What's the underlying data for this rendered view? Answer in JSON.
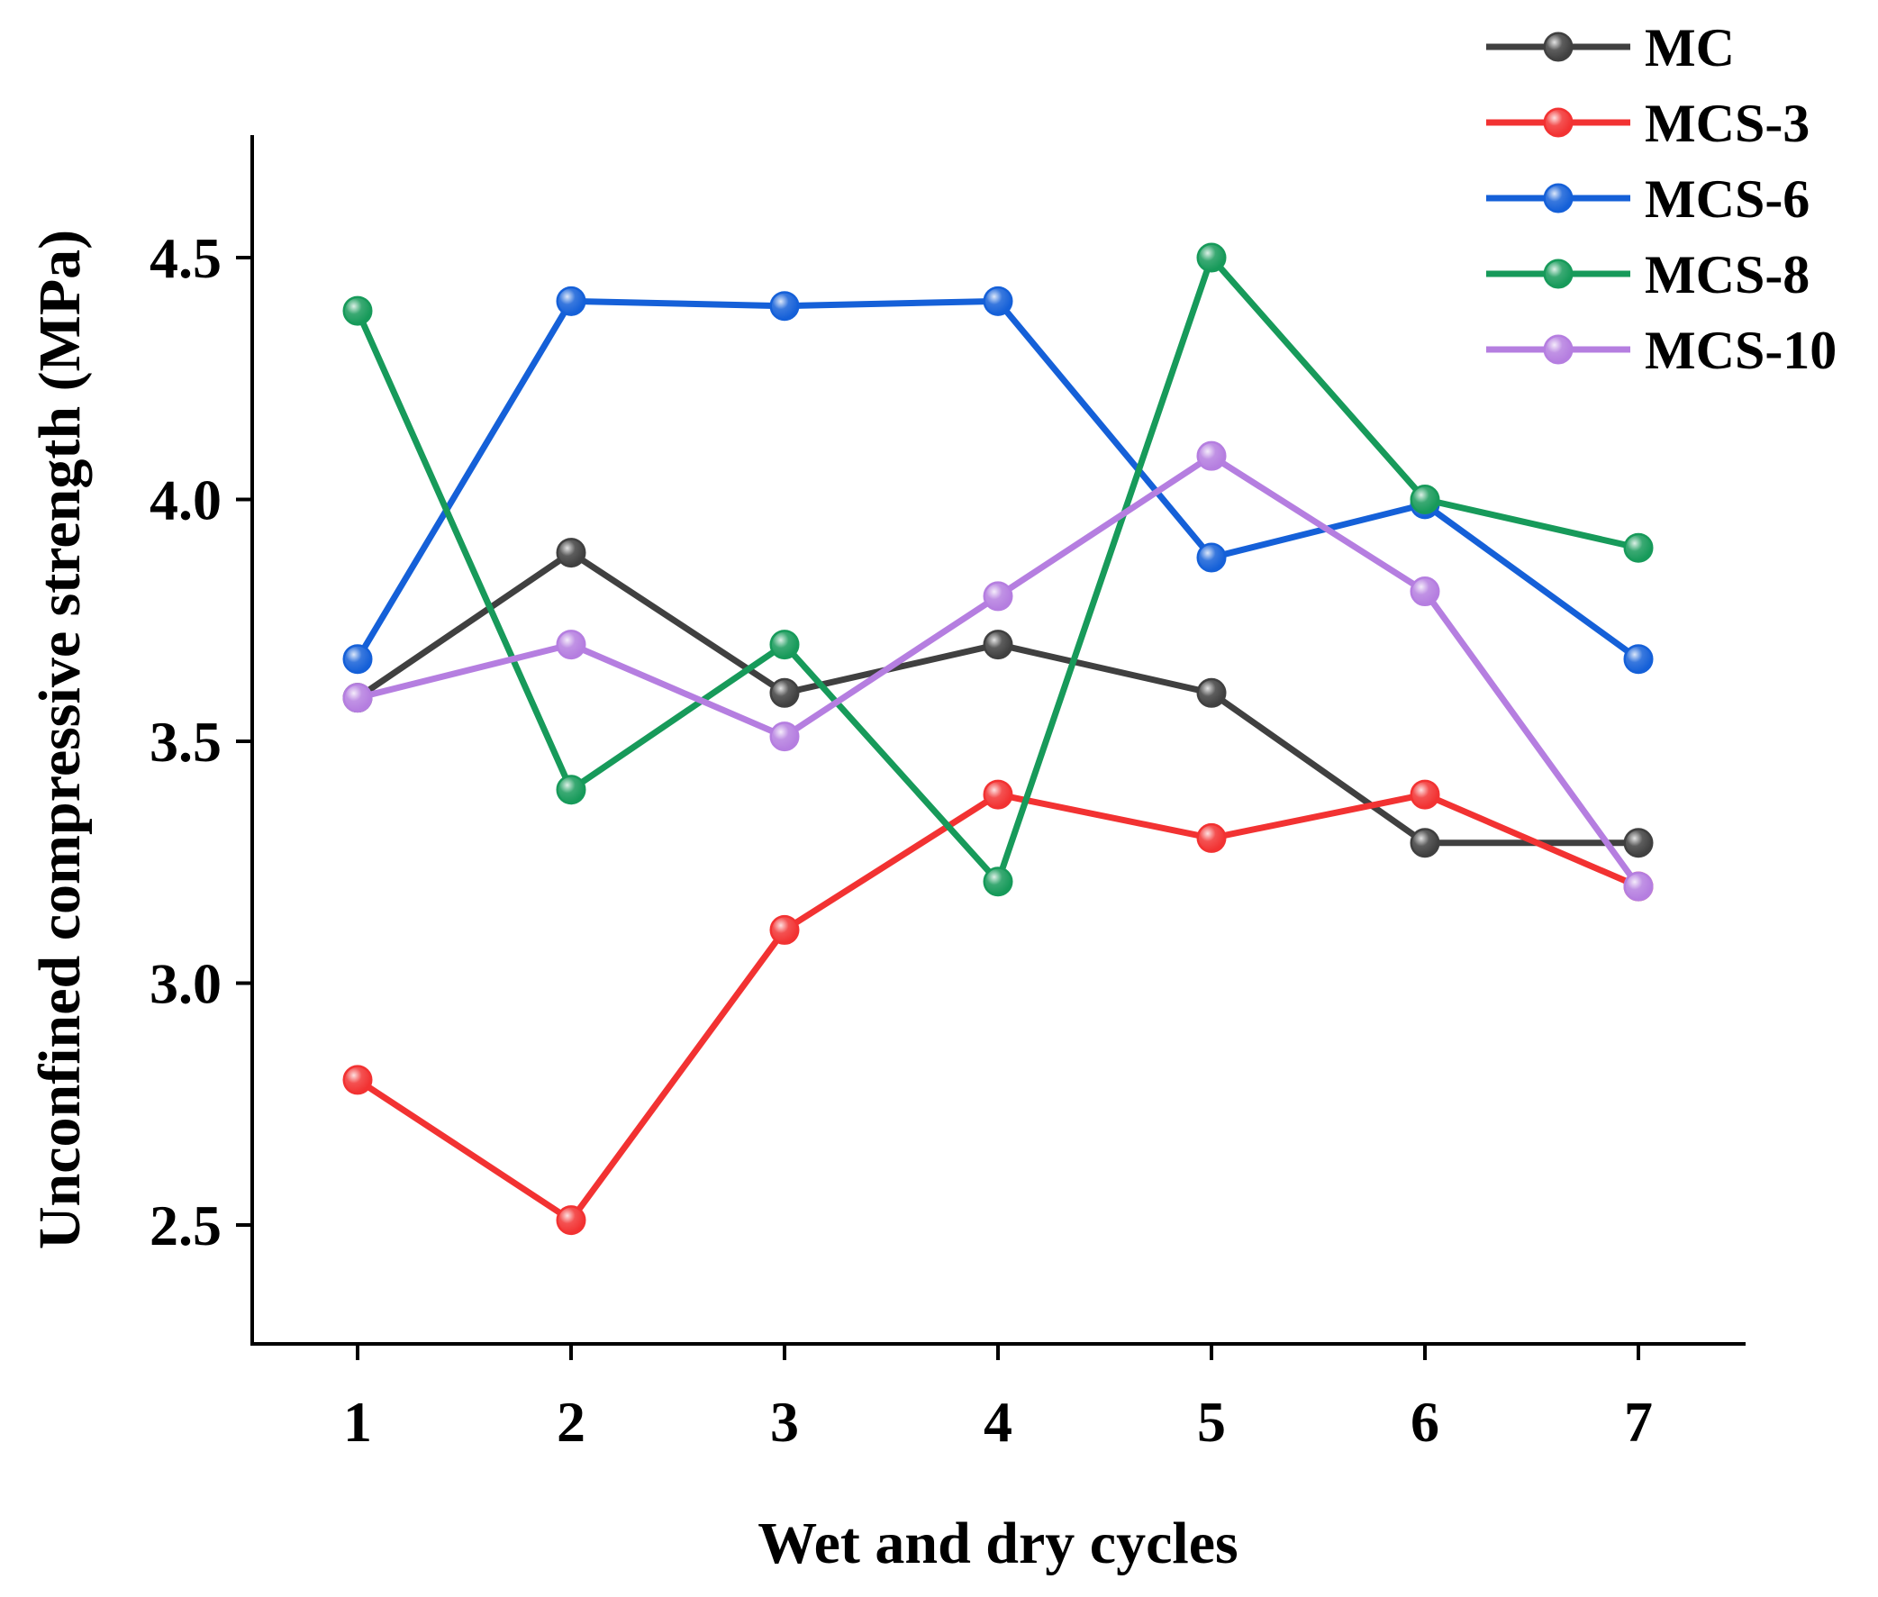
{
  "chart_data": {
    "type": "line",
    "title": "",
    "xlabel": "Wet and dry cycles",
    "ylabel": "Unconfined compressive strength (MPa)",
    "x": [
      1,
      2,
      3,
      4,
      5,
      6,
      7
    ],
    "x_tick_labels": [
      "1",
      "2",
      "3",
      "4",
      "5",
      "6",
      "7"
    ],
    "y_ticks": [
      2.5,
      3.0,
      3.5,
      4.0,
      4.5
    ],
    "y_tick_labels": [
      "2.5",
      "3.0",
      "3.5",
      "4.0",
      "4.5"
    ],
    "xlim": [
      0.5,
      7.5
    ],
    "ylim": [
      2.25,
      4.75
    ],
    "grid": false,
    "legend_position": "top-right",
    "series": [
      {
        "name": "MC",
        "color": "#404040",
        "values": [
          3.59,
          3.89,
          3.6,
          3.7,
          3.6,
          3.29,
          3.29
        ]
      },
      {
        "name": "MCS-3",
        "color": "#f23232",
        "values": [
          2.8,
          2.51,
          3.11,
          3.39,
          3.3,
          3.39,
          3.2
        ]
      },
      {
        "name": "MCS-6",
        "color": "#1560d8",
        "values": [
          3.67,
          4.41,
          4.4,
          4.41,
          3.88,
          3.99,
          3.67
        ]
      },
      {
        "name": "MCS-8",
        "color": "#179a5a",
        "values": [
          4.39,
          3.4,
          3.7,
          3.21,
          4.5,
          4.0,
          3.9
        ]
      },
      {
        "name": "MCS-10",
        "color": "#b57ee0",
        "values": [
          3.59,
          3.7,
          3.51,
          3.8,
          4.09,
          3.81,
          3.2
        ]
      }
    ]
  }
}
